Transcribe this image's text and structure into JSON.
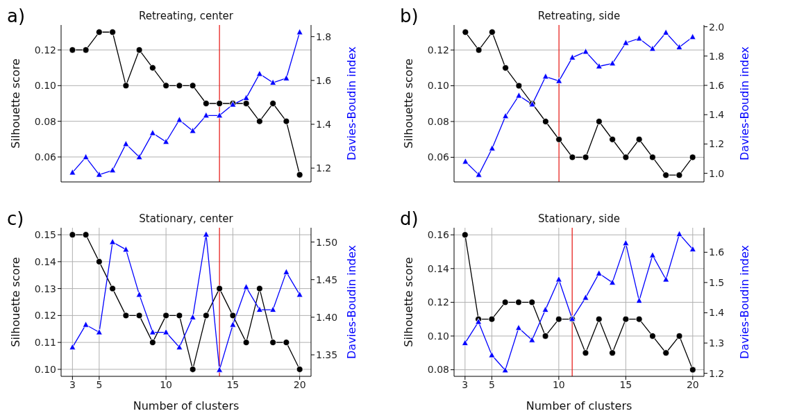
{
  "chart_data": [
    {
      "type": "line",
      "title": "Retreating, center",
      "annotations": [
        "a)"
      ],
      "ylabel": "Silhouette score",
      "y2label": "Davies-Boudin index",
      "x": [
        3,
        4,
        5,
        6,
        7,
        8,
        9,
        10,
        11,
        12,
        13,
        14,
        15,
        16,
        17,
        18,
        19,
        20
      ],
      "series": [
        {
          "color": "#000000",
          "marker": "circle",
          "values": [
            0.12,
            0.12,
            0.13,
            0.13,
            0.1,
            0.12,
            0.11,
            0.1,
            0.1,
            0.1,
            0.09,
            0.09,
            0.09,
            0.09,
            0.08,
            0.09,
            0.08,
            0.05
          ]
        },
        {
          "color": "#0000ff",
          "marker": "triangle",
          "axis": "y2",
          "values": [
            1.18,
            1.25,
            1.17,
            1.19,
            1.31,
            1.25,
            1.36,
            1.32,
            1.42,
            1.37,
            1.44,
            1.44,
            1.49,
            1.52,
            1.63,
            1.59,
            1.61,
            1.82
          ]
        }
      ],
      "xlim": [
        2.15,
        20.85
      ],
      "xticks": [
        3,
        5,
        10,
        15,
        20
      ],
      "ylim": [
        0.046,
        0.134
      ],
      "yticks": [
        {
          "value": 0.06,
          "label": "0.06"
        },
        {
          "value": 0.08,
          "label": "0.08"
        },
        {
          "value": 0.1,
          "label": "0.10"
        },
        {
          "value": 0.12,
          "label": "0.12"
        }
      ],
      "y2lim": [
        1.137,
        1.853
      ],
      "y2ticks": [
        {
          "value": 1.2,
          "label": "1.2"
        },
        {
          "value": 1.4,
          "label": "1.4"
        },
        {
          "value": 1.6,
          "label": "1.6"
        },
        {
          "value": 1.8,
          "label": "1.8"
        }
      ],
      "grid": true,
      "tick_labels": "y",
      "ref_lines": [
        {
          "axis": "x",
          "value": 14,
          "color": "#e8231f"
        }
      ]
    },
    {
      "type": "line",
      "title": "Retreating, side",
      "annotations": [
        "b)"
      ],
      "ylabel": "Silhouette score",
      "y2label": "Davies-Boudin index",
      "x": [
        3,
        4,
        5,
        6,
        7,
        8,
        9,
        10,
        11,
        12,
        13,
        14,
        15,
        16,
        17,
        18,
        19,
        20
      ],
      "series": [
        {
          "color": "#000000",
          "marker": "circle",
          "values": [
            0.13,
            0.12,
            0.13,
            0.11,
            0.1,
            0.09,
            0.08,
            0.07,
            0.06,
            0.06,
            0.08,
            0.07,
            0.06,
            0.07,
            0.06,
            0.05,
            0.05,
            0.06
          ]
        },
        {
          "color": "#0000ff",
          "marker": "triangle",
          "axis": "y2",
          "values": [
            1.08,
            0.99,
            1.17,
            1.39,
            1.53,
            1.47,
            1.66,
            1.63,
            1.79,
            1.83,
            1.73,
            1.75,
            1.89,
            1.92,
            1.85,
            1.96,
            1.86,
            1.93
          ]
        }
      ],
      "xlim": [
        2.15,
        20.85
      ],
      "xticks": [
        3,
        5,
        10,
        15,
        20
      ],
      "ylim": [
        0.0462,
        0.134
      ],
      "yticks": [
        {
          "value": 0.06,
          "label": "0.06"
        },
        {
          "value": 0.08,
          "label": "0.08"
        },
        {
          "value": 0.1,
          "label": "0.10"
        },
        {
          "value": 0.12,
          "label": "0.12"
        }
      ],
      "y2lim": [
        0.941,
        2.012
      ],
      "y2ticks": [
        {
          "value": 1.0,
          "label": "1.0"
        },
        {
          "value": 1.2,
          "label": "1.2"
        },
        {
          "value": 1.4,
          "label": "1.4"
        },
        {
          "value": 1.6,
          "label": "1.6"
        },
        {
          "value": 1.8,
          "label": "1.8"
        },
        {
          "value": 2.0,
          "label": "2.0"
        }
      ],
      "grid": true,
      "tick_labels": "y",
      "ref_lines": [
        {
          "axis": "x",
          "value": 10,
          "color": "#e8231f"
        }
      ]
    },
    {
      "type": "line",
      "title": "Stationary, center",
      "annotations": [
        "c)"
      ],
      "xlabel": "Number of clusters",
      "ylabel": "Silhouette score",
      "y2label": "Davies-Boudin index",
      "x": [
        3,
        4,
        5,
        6,
        7,
        8,
        9,
        10,
        11,
        12,
        13,
        14,
        15,
        16,
        17,
        18,
        19,
        20
      ],
      "series": [
        {
          "color": "#000000",
          "marker": "circle",
          "values": [
            0.15,
            0.15,
            0.14,
            0.13,
            0.12,
            0.12,
            0.11,
            0.12,
            0.12,
            0.1,
            0.12,
            0.13,
            0.12,
            0.11,
            0.13,
            0.11,
            0.11,
            0.1
          ]
        },
        {
          "color": "#0000ff",
          "marker": "triangle",
          "axis": "y2",
          "values": [
            1.36,
            1.39,
            1.38,
            1.5,
            1.49,
            1.43,
            1.38,
            1.38,
            1.36,
            1.4,
            1.51,
            1.33,
            1.39,
            1.44,
            1.41,
            1.41,
            1.46,
            1.43
          ]
        }
      ],
      "xlim": [
        2.15,
        20.85
      ],
      "xticks": [
        3,
        5,
        10,
        15,
        20
      ],
      "ylim": [
        0.0974,
        0.1526
      ],
      "yticks": [
        {
          "value": 0.1,
          "label": "0.10"
        },
        {
          "value": 0.11,
          "label": "0.11"
        },
        {
          "value": 0.12,
          "label": "0.12"
        },
        {
          "value": 0.13,
          "label": "0.13"
        },
        {
          "value": 0.14,
          "label": "0.14"
        },
        {
          "value": 0.15,
          "label": "0.15"
        }
      ],
      "y2lim": [
        1.3214,
        1.519
      ],
      "y2ticks": [
        {
          "value": 1.35,
          "label": "1.35"
        },
        {
          "value": 1.4,
          "label": "1.40"
        },
        {
          "value": 1.45,
          "label": "1.45"
        },
        {
          "value": 1.5,
          "label": "1.50"
        }
      ],
      "grid": true,
      "ref_lines": [
        {
          "axis": "x",
          "value": 14,
          "color": "#e8231f"
        }
      ]
    },
    {
      "type": "line",
      "title": "Stationary, side",
      "annotations": [
        "d)"
      ],
      "xlabel": "Number of clusters",
      "ylabel": "Silhouette score",
      "y2label": "Davies-Boudin index",
      "x": [
        3,
        4,
        5,
        6,
        7,
        8,
        9,
        10,
        11,
        12,
        13,
        14,
        15,
        16,
        17,
        18,
        19,
        20
      ],
      "series": [
        {
          "color": "#000000",
          "marker": "circle",
          "values": [
            0.16,
            0.11,
            0.11,
            0.12,
            0.12,
            0.12,
            0.1,
            0.11,
            0.11,
            0.09,
            0.11,
            0.09,
            0.11,
            0.11,
            0.1,
            0.09,
            0.1,
            0.08
          ]
        },
        {
          "color": "#0000ff",
          "marker": "triangle",
          "axis": "y2",
          "values": [
            1.3,
            1.37,
            1.26,
            1.21,
            1.35,
            1.31,
            1.41,
            1.51,
            1.38,
            1.45,
            1.53,
            1.5,
            1.63,
            1.44,
            1.59,
            1.51,
            1.66,
            1.61
          ]
        }
      ],
      "xlim": [
        2.18,
        20.84
      ],
      "xticks": [
        3,
        5,
        10,
        15,
        20
      ],
      "ylim": [
        0.0761,
        0.1642
      ],
      "yticks": [
        {
          "value": 0.08,
          "label": "0.08"
        },
        {
          "value": 0.1,
          "label": "0.10"
        },
        {
          "value": 0.12,
          "label": "0.12"
        },
        {
          "value": 0.14,
          "label": "0.14"
        },
        {
          "value": 0.16,
          "label": "0.16"
        }
      ],
      "y2lim": [
        1.19,
        1.681
      ],
      "y2ticks": [
        {
          "value": 1.2,
          "label": "1.2"
        },
        {
          "value": 1.3,
          "label": "1.3"
        },
        {
          "value": 1.4,
          "label": "1.4"
        },
        {
          "value": 1.5,
          "label": "1.5"
        },
        {
          "value": 1.6,
          "label": "1.6"
        }
      ],
      "grid": true,
      "ref_lines": [
        {
          "axis": "x",
          "value": 11,
          "color": "#e8231f"
        }
      ]
    }
  ]
}
